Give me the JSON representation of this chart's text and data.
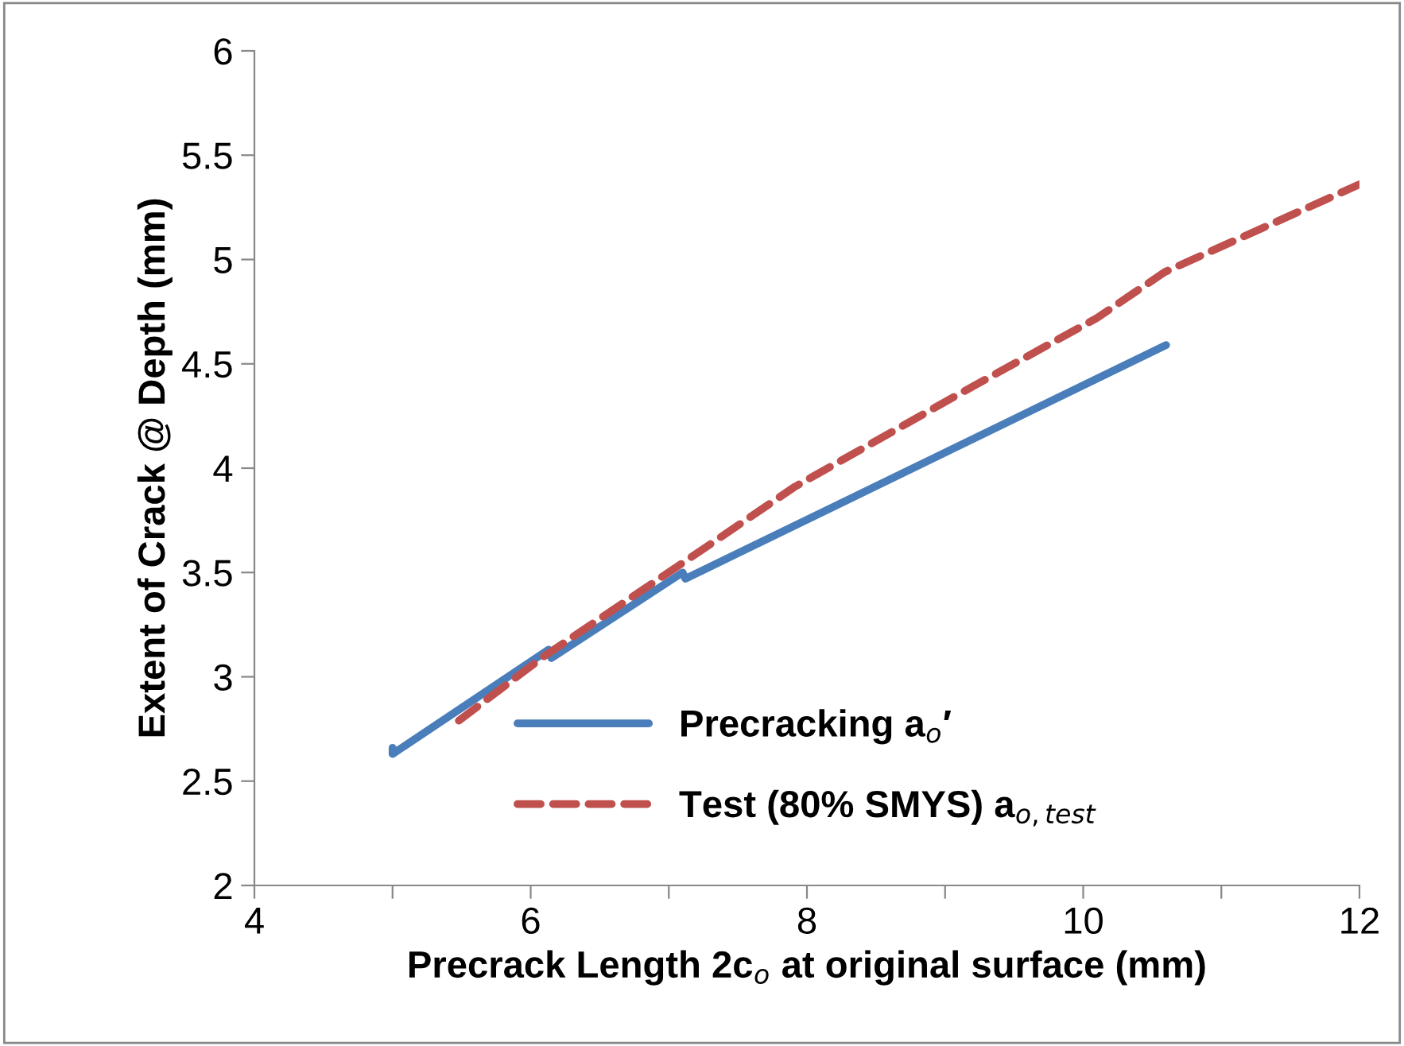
{
  "chart_data": {
    "type": "line",
    "xlabel": "Precrack Length 2c$_{o}$ at original surface (mm)",
    "ylabel": "Extent of Crack @ Depth (mm)",
    "series": [
      {
        "name": "Precracking a$_{o}$′",
        "color": "#4a7ebb",
        "line_style": "solid",
        "x": [
          5.0,
          5.0,
          6.13,
          6.15,
          7.1,
          7.12,
          10.6
        ],
        "values": [
          2.66,
          2.63,
          3.13,
          3.09,
          3.5,
          3.47,
          4.59
        ]
      },
      {
        "name": "Test (80% SMYS) a$_{o,test}$",
        "color": "#c0504d",
        "line_style": "dashed",
        "x": [
          5.48,
          6.1,
          7.11,
          7.91,
          9.06,
          10.1,
          10.59,
          12.0
        ],
        "values": [
          2.79,
          3.1,
          3.55,
          3.91,
          4.34,
          4.72,
          4.94,
          5.36
        ]
      }
    ],
    "xlim": [
      4,
      12
    ],
    "xticks": [
      4,
      {
        "value": 5,
        "label": null
      },
      6,
      {
        "value": 7,
        "label": null
      },
      8,
      {
        "value": 9,
        "label": null
      },
      10,
      {
        "value": 11,
        "label": null
      },
      12
    ],
    "ylim": [
      2,
      6
    ],
    "yticks": [
      2,
      2.5,
      3,
      3.5,
      4,
      4.5,
      5,
      5.5,
      6
    ],
    "grid": false,
    "legend": "bottom",
    "marker": "none"
  }
}
